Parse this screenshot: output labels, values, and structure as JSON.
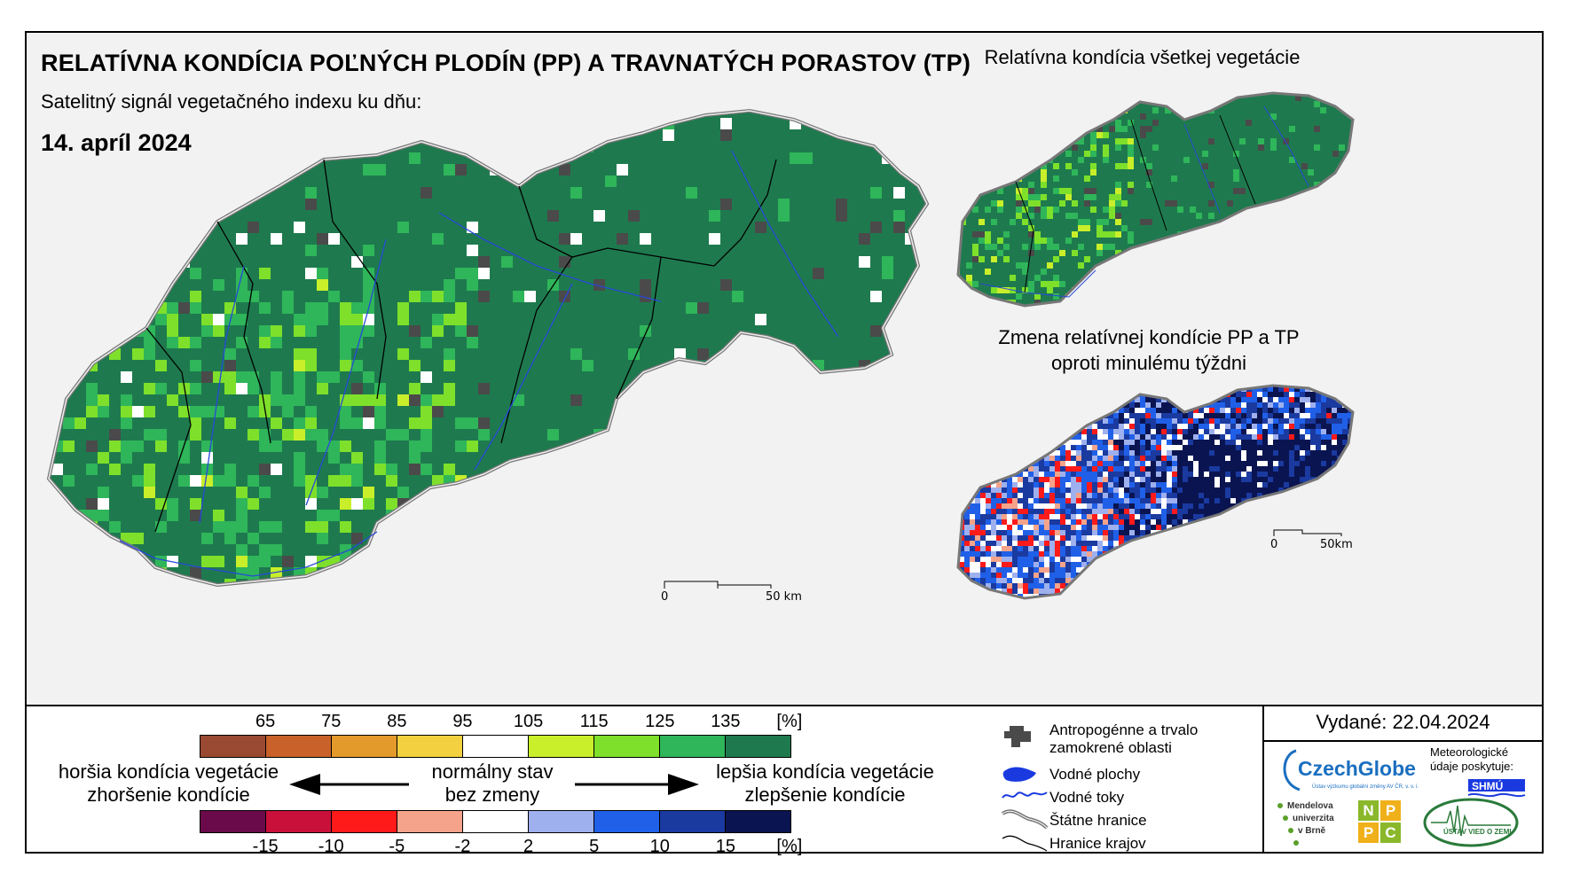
{
  "header": {
    "title": "RELATÍVNA KONDÍCIA POĽNÝCH PLODÍN (PP) A TRAVNATÝCH PORASTOV (TP)",
    "subtitle": "Satelitný signál vegetačného indexu ku dňu:",
    "date": "14. apríl 2024"
  },
  "inset_top": {
    "title": "Relatívna kondícia všetkej vegetácie"
  },
  "inset_bottom": {
    "title_line1": "Zmena relatívnej kondície PP a TP",
    "title_line2": "oproti minulému týždni"
  },
  "scalebar_main": {
    "zero": "0",
    "end": "50 km"
  },
  "scalebar_inset": {
    "zero": "0",
    "end": "50km"
  },
  "condition_scale": {
    "ticks": [
      "65",
      "75",
      "85",
      "95",
      "105",
      "115",
      "125",
      "135"
    ],
    "unit": "[%]",
    "colors": [
      "#9a4a32",
      "#c8622a",
      "#e39a2a",
      "#f2d040",
      "#ffffff",
      "#c8ef2a",
      "#7ee02a",
      "#2fb55a",
      "#1e7a4e"
    ]
  },
  "change_scale": {
    "ticks": [
      "-15",
      "-10",
      "-5",
      "-2",
      "2",
      "5",
      "10",
      "15"
    ],
    "unit": "[%]",
    "colors": [
      "#6a0a4a",
      "#c8103a",
      "#ff1a1a",
      "#f5a38a",
      "#ffffff",
      "#9fb0ee",
      "#2060e8",
      "#1a3aa0",
      "#0a1450"
    ]
  },
  "arrows": {
    "worse_line1": "horšia kondícia vegetácie",
    "worse_line2": "zhoršenie kondície",
    "normal_line1": "normálny stav",
    "normal_line2": "bez zmeny",
    "better_line1": "lepšia kondícia vegetácie",
    "better_line2": "zlepšenie kondície"
  },
  "map_legend": {
    "anthropogenic": "Antropogénne a trvalo zamokrené oblasti",
    "water_bodies": "Vodné plochy",
    "water_streams": "Vodné toky",
    "state_border": "Štátne hranice",
    "regional_border": "Hranice krajov"
  },
  "issued": "Vydané: 22.04.2024",
  "logos": {
    "czechglobe": "CzechGlobe",
    "czechglobe_sub": "Ústav výzkumu globální změny AV ČR, v. v. i.",
    "meteo": "Meteorologické údaje poskytuje:",
    "shmu": "SHMÚ",
    "mendelu": "Mendelova univerzita v Brně",
    "nppc_letters": [
      "N",
      "P",
      "P",
      "C"
    ],
    "uvz": "ÚSTAV VIED O ZEMI"
  }
}
